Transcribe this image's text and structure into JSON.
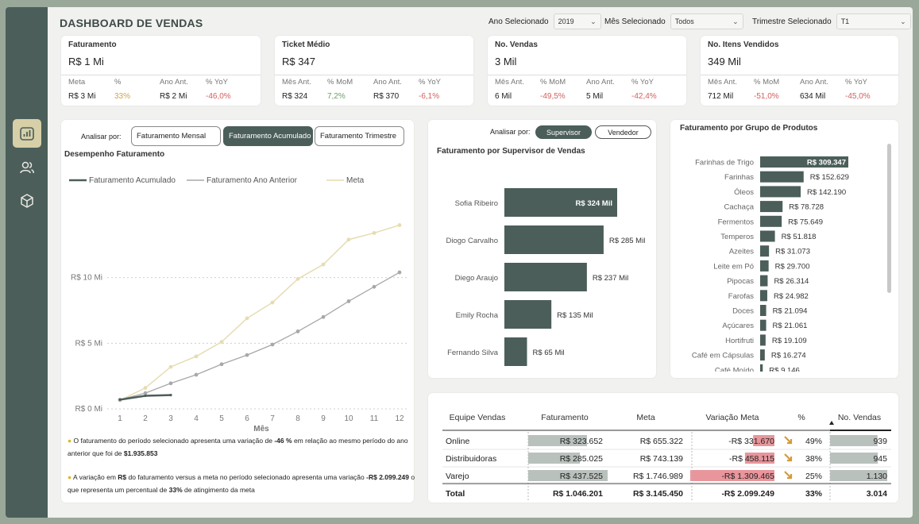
{
  "header": {
    "title": "DASHBOARD DE VENDAS",
    "filters": [
      {
        "label": "Ano Selecionado",
        "value": "2019"
      },
      {
        "label": "Mês Selecionado",
        "value": "Todos"
      },
      {
        "label": "Trimestre Selecionado",
        "value": "T1"
      }
    ]
  },
  "kpis": {
    "faturamento": {
      "title": "Faturamento",
      "value": "R$ 1 Mi",
      "subs": [
        {
          "label": "Meta",
          "value": "R$ 3 Mi",
          "tone": "plain"
        },
        {
          "label": "%",
          "value": "33%",
          "tone": "pos"
        },
        {
          "label": "Ano Ant.",
          "value": "R$ 2 Mi",
          "tone": "plain"
        },
        {
          "label": "% YoY",
          "value": "-46,0%",
          "tone": "neg"
        }
      ]
    },
    "ticket": {
      "title": "Ticket Médio",
      "value": "R$ 347",
      "subs": [
        {
          "label": "Mês Ant.",
          "value": "R$ 324",
          "tone": "plain"
        },
        {
          "label": "% MoM",
          "value": "7,2%",
          "tone": "gre"
        },
        {
          "label": "Ano Ant.",
          "value": "R$ 370",
          "tone": "plain"
        },
        {
          "label": "% YoY",
          "value": "-6,1%",
          "tone": "neg"
        }
      ]
    },
    "vendas": {
      "title": "No. Vendas",
      "value": "3 Mil",
      "subs": [
        {
          "label": "Mês Ant.",
          "value": "6 Mil",
          "tone": "plain"
        },
        {
          "label": "% MoM",
          "value": "-49,5%",
          "tone": "neg"
        },
        {
          "label": "Ano Ant.",
          "value": "5 Mil",
          "tone": "plain"
        },
        {
          "label": "% YoY",
          "value": "-42,4%",
          "tone": "neg"
        }
      ]
    },
    "itens": {
      "title": "No. Itens Vendidos",
      "value": "349 Mil",
      "subs": [
        {
          "label": "Mês Ant.",
          "value": "712 Mil",
          "tone": "plain"
        },
        {
          "label": "% MoM",
          "value": "-51,0%",
          "tone": "neg"
        },
        {
          "label": "Ano Ant.",
          "value": "634 Mil",
          "tone": "plain"
        },
        {
          "label": "% YoY",
          "value": "-45,0%",
          "tone": "neg"
        }
      ]
    }
  },
  "line_panel": {
    "analyze_label": "Analisar por:",
    "buttons": [
      "Faturamento Mensal",
      "Faturamento Acumulado",
      "Faturamento Trimestre"
    ],
    "selected": "Faturamento Acumulado",
    "title": "Desempenho Faturamento",
    "insight1_pre": "O faturamento do período selecionado apresenta uma variação de",
    "insight1_pct": "-46 %",
    "insight1_mid": "em relação ao mesmo período do ano anterior que foi de",
    "insight1_val": "$1.935.853",
    "insight2_pre": "A variação em",
    "insight2_rs": "R$",
    "insight2_mid": "do faturamento versus a meta no período selecionado apresenta uma variação",
    "insight2_val": "-R$ 2.099.249",
    "insight2_mid2": "o que representa um percentual de",
    "insight2_pct": "33%",
    "insight2_end": "de atingimento da meta"
  },
  "supervisor_panel": {
    "analyze_label": "Analisar por:",
    "toggles": [
      "Supervisor",
      "Vendedor"
    ],
    "selected": "Supervisor",
    "title": "Faturamento por Supervisor de Vendas"
  },
  "products_panel": {
    "title": "Faturamento por Grupo de Produtos"
  },
  "table": {
    "headers": [
      "Equipe Vendas",
      "Faturamento",
      "Meta",
      "Variação Meta",
      "%",
      "No. Vendas"
    ],
    "rows": [
      {
        "equipe": "Online",
        "faturamento": "R$ 323.652",
        "fat_value": 323652,
        "meta": "R$ 655.322",
        "variacao": "-R$ 331.670",
        "var_value": -331670,
        "pct": "49%",
        "vendas": "939",
        "vendas_value": 939
      },
      {
        "equipe": "Distribuidoras",
        "faturamento": "R$ 285.025",
        "fat_value": 285025,
        "meta": "R$ 743.139",
        "variacao": "-R$ 458.115",
        "var_value": -458115,
        "pct": "38%",
        "vendas": "945",
        "vendas_value": 945
      },
      {
        "equipe": "Varejo",
        "faturamento": "R$ 437.525",
        "fat_value": 437525,
        "meta": "R$ 1.746.989",
        "variacao": "-R$ 1.309.465",
        "var_value": -1309465,
        "pct": "25%",
        "vendas": "1.130",
        "vendas_value": 1130
      }
    ],
    "total": {
      "equipe": "Total",
      "faturamento": "R$ 1.046.201",
      "meta": "R$ 3.145.450",
      "variacao": "-R$ 2.099.249",
      "pct": "33%",
      "vendas": "3.014"
    },
    "colors": {
      "bar": "#b9c1bd",
      "neg": "#e8959b",
      "arrow": "#d49a3a"
    }
  },
  "colors": {
    "sidebar": "#4b5e5a",
    "accent": "#d6cfa8",
    "bar": "#4b5e5a",
    "acumulado": "#4b5e5a",
    "ano_anterior": "#a8a8a8",
    "meta": "#e6dcb0"
  },
  "chart_data": [
    {
      "type": "line",
      "title": "Desempenho Faturamento",
      "xlabel": "Mês",
      "ylabel": "",
      "x": [
        1,
        2,
        3,
        4,
        5,
        6,
        7,
        8,
        9,
        10,
        11,
        12
      ],
      "yticks": [
        "R$ 0 Mi",
        "R$ 5 Mi",
        "R$ 10 Mi"
      ],
      "ylim": [
        0,
        15
      ],
      "legend_position": "top",
      "series": [
        {
          "name": "Faturamento Acumulado",
          "values": [
            0.7,
            1.0,
            1.05,
            null,
            null,
            null,
            null,
            null,
            null,
            null,
            null,
            null
          ]
        },
        {
          "name": "Faturamento Ano Anterior",
          "values": [
            0.7,
            1.2,
            1.95,
            2.6,
            3.4,
            4.1,
            4.9,
            5.9,
            7.0,
            8.2,
            9.3,
            10.4
          ]
        },
        {
          "name": "Meta",
          "values": [
            0.65,
            1.6,
            3.2,
            4.0,
            5.1,
            6.9,
            8.1,
            9.9,
            11.0,
            12.9,
            13.4,
            14.0
          ]
        }
      ]
    },
    {
      "type": "bar",
      "title": "Faturamento por Supervisor de Vendas",
      "orientation": "horizontal",
      "categories": [
        "Sofia Ribeiro",
        "Diogo Carvalho",
        "Diego Araujo",
        "Emily Rocha",
        "Fernando Silva"
      ],
      "values": [
        324,
        285,
        237,
        135,
        65
      ],
      "labels": [
        "R$ 324 Mil",
        "R$ 285 Mil",
        "R$ 237 Mil",
        "R$ 135 Mil",
        "R$ 65 Mil"
      ],
      "unit": "Mil"
    },
    {
      "type": "bar",
      "title": "Faturamento por Grupo de Produtos",
      "orientation": "horizontal",
      "categories": [
        "Farinhas de Trigo",
        "Farinhas",
        "Óleos",
        "Cachaça",
        "Fermentos",
        "Temperos",
        "Azeites",
        "Leite em Pó",
        "Pipocas",
        "Farofas",
        "Doces",
        "Açúcares",
        "Hortifruti",
        "Café em Cápsulas",
        "Café Moído"
      ],
      "values": [
        309347,
        152629,
        142190,
        78728,
        75649,
        51818,
        31073,
        29700,
        26314,
        24982,
        21094,
        21061,
        19109,
        16274,
        9146
      ],
      "labels": [
        "R$ 309.347",
        "R$ 152.629",
        "R$ 142.190",
        "R$ 78.728",
        "R$ 75.649",
        "R$ 51.818",
        "R$ 31.073",
        "R$ 29.700",
        "R$ 26.314",
        "R$ 24.982",
        "R$ 21.094",
        "R$ 21.061",
        "R$ 19.109",
        "R$ 16.274",
        "R$ 9.146"
      ]
    }
  ]
}
